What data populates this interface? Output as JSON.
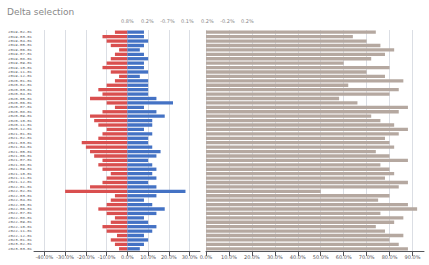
{
  "chart_data": [
    {
      "type": "bar",
      "title": "Delta selection",
      "orientation": "horizontal",
      "grid": true,
      "categories": [
        "2023-03-01",
        "2023-02-01",
        "2023-01-01",
        "2022-12-01",
        "2022-11-01",
        "2022-10-01",
        "2022-09-01",
        "2022-08-01",
        "2022-07-01",
        "2022-06-01",
        "2022-05-01",
        "2022-04-01",
        "2022-03-01",
        "2022-02-01",
        "2022-01-01",
        "2021-12-01",
        "2021-11-01",
        "2021-10-01",
        "2021-09-01",
        "2021-08-01",
        "2021-07-01",
        "2021-06-01",
        "2021-05-01",
        "2021-04-01",
        "2021-03-01",
        "2021-02-01",
        "2021-01-01",
        "2020-12-01",
        "2020-11-01",
        "2020-10-01",
        "2020-09-01",
        "2020-08-01",
        "2020-07-01",
        "2020-06-01",
        "2020-05-01",
        "2020-04-01",
        "2020-03-01",
        "2020-02-01",
        "2020-01-01",
        "2019-12-01",
        "2019-11-01",
        "2019-10-01",
        "2019-09-01",
        "2019-08-01",
        "2019-07-01",
        "2019-06-01",
        "2019-05-01",
        "2019-04-01",
        "2019-03-01",
        "2019-02-01"
      ],
      "series": [
        {
          "color": "#d94f4f",
          "values": [
            -4,
            -6,
            -8,
            -5,
            -10,
            -12,
            -8,
            -6,
            -10,
            -14,
            -10,
            -8,
            -6,
            -30,
            -18,
            -12,
            -10,
            -8,
            -12,
            -14,
            -12,
            -16,
            -18,
            -20,
            -22,
            -14,
            -12,
            -10,
            -14,
            -16,
            -18,
            -12,
            -6,
            -10,
            -18,
            -12,
            -14,
            -10,
            -6,
            -4,
            -8,
            -12,
            -10,
            -8,
            -6,
            -4,
            -8,
            -10,
            -12,
            -6
          ]
        },
        {
          "color": "#4472c4",
          "values": [
            6,
            8,
            10,
            8,
            12,
            14,
            10,
            8,
            14,
            18,
            12,
            8,
            14,
            28,
            14,
            10,
            14,
            12,
            14,
            12,
            10,
            14,
            16,
            12,
            10,
            10,
            12,
            8,
            12,
            12,
            18,
            14,
            8,
            22,
            14,
            10,
            10,
            10,
            10,
            6,
            10,
            8,
            8,
            10,
            8,
            6,
            8,
            10,
            8,
            8
          ]
        }
      ],
      "xlim": [
        -45,
        35
      ],
      "xticks": [
        {
          "value": -40,
          "label": "-40.0%"
        },
        {
          "value": -30,
          "label": "-30.0%"
        },
        {
          "value": -20,
          "label": "-20.0%"
        },
        {
          "value": -10,
          "label": "-10.0%"
        },
        {
          "value": 0,
          "label": "0.0%"
        },
        {
          "value": 10,
          "label": "10.0%"
        },
        {
          "value": 20,
          "label": "20.0%"
        },
        {
          "value": 30,
          "label": "30.0%"
        }
      ],
      "annotations": [
        "0.8%",
        "0.2%",
        "-0.7%",
        "0.1%",
        "0.2%",
        "-0.2%",
        "0.2%"
      ]
    },
    {
      "type": "bar",
      "orientation": "horizontal",
      "grid": true,
      "tick_labels": "x",
      "categories": [
        "2023-03-01",
        "2023-02-01",
        "2023-01-01",
        "2022-12-01",
        "2022-11-01",
        "2022-10-01",
        "2022-09-01",
        "2022-08-01",
        "2022-07-01",
        "2022-06-01",
        "2022-05-01",
        "2022-04-01",
        "2022-03-01",
        "2022-02-01",
        "2022-01-01",
        "2021-12-01",
        "2021-11-01",
        "2021-10-01",
        "2021-09-01",
        "2021-08-01",
        "2021-07-01",
        "2021-06-01",
        "2021-05-01",
        "2021-04-01",
        "2021-03-01",
        "2021-02-01",
        "2021-01-01",
        "2020-12-01",
        "2020-11-01",
        "2020-10-01",
        "2020-09-01",
        "2020-08-01",
        "2020-07-01",
        "2020-06-01",
        "2020-05-01",
        "2020-04-01",
        "2020-03-01",
        "2020-02-01",
        "2020-01-01",
        "2019-12-01",
        "2019-11-01",
        "2019-10-01",
        "2019-09-01",
        "2019-08-01",
        "2019-07-01",
        "2019-06-01",
        "2019-05-01",
        "2019-04-01",
        "2019-03-01",
        "2019-02-01"
      ],
      "values": [
        88,
        84,
        80,
        86,
        78,
        74,
        82,
        86,
        76,
        92,
        88,
        75,
        80,
        50,
        84,
        88,
        78,
        82,
        80,
        76,
        88,
        80,
        74,
        82,
        80,
        78,
        84,
        88,
        82,
        76,
        72,
        84,
        88,
        66,
        58,
        80,
        84,
        62,
        86,
        78,
        70,
        80,
        60,
        72,
        78,
        82,
        76,
        70,
        64,
        74
      ],
      "color": "#b5a8a0",
      "xlim": [
        0,
        95
      ],
      "xticks": [
        {
          "value": 0,
          "label": "0.0%"
        },
        {
          "value": 10,
          "label": "10.0%"
        },
        {
          "value": 20,
          "label": "20.0%"
        },
        {
          "value": 30,
          "label": "30.0%"
        },
        {
          "value": 40,
          "label": "40.0%"
        },
        {
          "value": 50,
          "label": "50.0%"
        },
        {
          "value": 60,
          "label": "60.0%"
        },
        {
          "value": 70,
          "label": "70.0%"
        },
        {
          "value": 80,
          "label": "80.0%"
        },
        {
          "value": 90,
          "label": "90.0%"
        }
      ]
    }
  ]
}
